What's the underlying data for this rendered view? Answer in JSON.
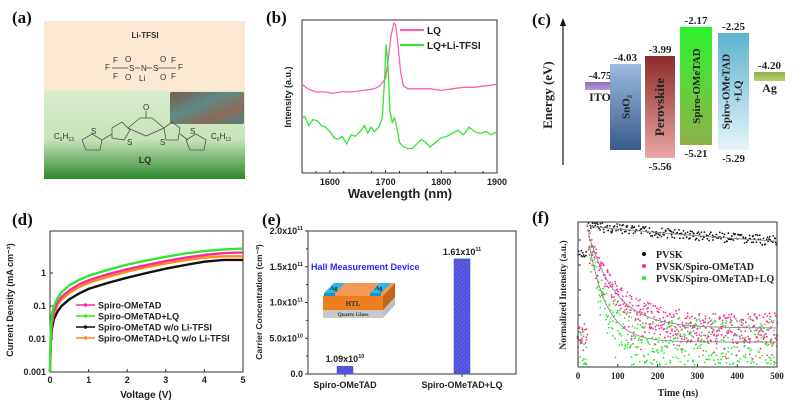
{
  "panels": {
    "a": "(a)",
    "b": "(b)",
    "c": "(c)",
    "d": "(d)",
    "e": "(e)",
    "f": "(f)"
  },
  "panel_a": {
    "top_title": "Li-TFSI",
    "bottom_title": "LQ",
    "li_tfsi_atoms": [
      "F",
      "F",
      "F",
      "O",
      "O",
      "S",
      "N",
      "Li",
      "S",
      "O",
      "O",
      "F",
      "F",
      "F"
    ],
    "lq_atoms": [
      "O",
      "C6H13",
      "S",
      "S",
      "S",
      "S",
      "C6H13"
    ],
    "colors": {
      "top_bg": "#fbe9d4",
      "bottom_top": "#d8ebcc",
      "bottom_bottom": "#2e8a2e"
    }
  },
  "chart_data": [
    {
      "id": "b",
      "type": "line",
      "title": "",
      "xlabel": "Wavelength (nm)",
      "ylabel": "Intensity (a.u.)",
      "xlim": [
        1550,
        1900
      ],
      "ylim": [
        0,
        1
      ],
      "xticks": [
        1600,
        1700,
        1800,
        1900
      ],
      "yticks_shown": false,
      "legend": "top-right",
      "series": [
        {
          "name": "LQ",
          "color": "#ff5fb0",
          "x": [
            1550,
            1560,
            1575,
            1590,
            1605,
            1620,
            1640,
            1660,
            1680,
            1690,
            1700,
            1705,
            1710,
            1715,
            1718,
            1722,
            1727,
            1732,
            1740,
            1760,
            1780,
            1800,
            1820,
            1840,
            1860,
            1880,
            1900
          ],
          "y": [
            0.58,
            0.55,
            0.53,
            0.53,
            0.52,
            0.53,
            0.53,
            0.54,
            0.55,
            0.57,
            0.62,
            0.75,
            0.9,
            0.98,
            0.97,
            0.85,
            0.66,
            0.57,
            0.55,
            0.55,
            0.55,
            0.54,
            0.55,
            0.56,
            0.56,
            0.57,
            0.58
          ]
        },
        {
          "name": "LQ+Li-TFSI",
          "color": "#2ee82e",
          "x": [
            1550,
            1555,
            1562,
            1570,
            1578,
            1585,
            1592,
            1600,
            1608,
            1615,
            1622,
            1630,
            1638,
            1646,
            1654,
            1662,
            1668,
            1674,
            1680,
            1688,
            1694,
            1698,
            1701,
            1704,
            1708,
            1712,
            1716,
            1720,
            1725,
            1732,
            1740,
            1748,
            1756,
            1764,
            1772,
            1780,
            1790,
            1800,
            1810,
            1820,
            1830,
            1840,
            1850,
            1860,
            1870,
            1880,
            1890,
            1900
          ],
          "y": [
            0.36,
            0.37,
            0.31,
            0.35,
            0.34,
            0.31,
            0.3,
            0.27,
            0.23,
            0.22,
            0.24,
            0.19,
            0.25,
            0.24,
            0.27,
            0.31,
            0.26,
            0.3,
            0.27,
            0.3,
            0.36,
            0.6,
            0.84,
            0.72,
            0.4,
            0.33,
            0.36,
            0.3,
            0.2,
            0.17,
            0.16,
            0.16,
            0.19,
            0.22,
            0.2,
            0.17,
            0.2,
            0.23,
            0.24,
            0.26,
            0.28,
            0.25,
            0.3,
            0.27,
            0.26,
            0.27,
            0.25,
            0.27
          ]
        }
      ]
    },
    {
      "id": "c",
      "type": "bar",
      "title": "",
      "ylabel": "Energy (eV)",
      "ylim": [
        -5.8,
        -1.9
      ],
      "categories": [
        "ITO",
        "SnO2",
        "Perovskite",
        "Spiro-OMeTAD",
        "Spiro-OMeTAD+LQ",
        "Ag"
      ],
      "upper": [
        -4.75,
        -4.03,
        -3.99,
        -2.17,
        -2.25,
        -4.2
      ],
      "lower": [
        null,
        -7.4,
        -5.56,
        -5.21,
        -5.29,
        null
      ],
      "upper_labels": [
        "-4.75",
        "-4.03",
        "-3.99",
        "-2.17",
        "-2.25",
        "-4.20"
      ],
      "lower_labels": [
        "",
        "",
        "-5.56",
        "-5.21",
        "-5.29",
        ""
      ],
      "bar_labels": [
        "ITO",
        "SnO₂",
        "Perovskite",
        "Spiro-OMeTAD",
        "Spiro-OMeTAD",
        "Ag"
      ],
      "bar_labels_line2": [
        "",
        "",
        "",
        "",
        "+LQ",
        ""
      ],
      "colors": [
        [
          "#8a6fb8",
          "#b79bd8"
        ],
        [
          "#9fbbe0",
          "#355a8a"
        ],
        [
          "#8e2a2a",
          "#e9a7a7"
        ],
        [
          "#2ef22e",
          "#8fb24a"
        ],
        [
          "#5cb3cf",
          "#e6f4f8"
        ],
        [
          "#8fb24a",
          "#b9cf6e"
        ]
      ]
    },
    {
      "id": "d",
      "type": "line",
      "title": "",
      "xlabel": "Voltage (V)",
      "ylabel": "Current Density (mA cm⁻²)",
      "xlim": [
        0,
        5
      ],
      "ylim": [
        0.001,
        10
      ],
      "yscale": "log",
      "xticks": [
        0,
        1,
        2,
        3,
        4,
        5
      ],
      "yticks": [
        0.001,
        0.01,
        0.1,
        1
      ],
      "ytick_labels": [
        "0.001",
        "0.01",
        "0.1",
        "1"
      ],
      "legend": "center",
      "series": [
        {
          "name": "Spiro-OMeTAD",
          "color": "#ff2a9a",
          "x": [
            0,
            0.02,
            0.05,
            0.1,
            0.2,
            0.3,
            0.5,
            0.75,
            1,
            1.5,
            2,
            2.5,
            3,
            3.5,
            4,
            4.5,
            5
          ],
          "y": [
            0.001,
            0.012,
            0.035,
            0.07,
            0.13,
            0.19,
            0.3,
            0.45,
            0.6,
            0.92,
            1.3,
            1.75,
            2.3,
            2.9,
            3.5,
            4.0,
            4.2
          ]
        },
        {
          "name": "Spiro-OMeTAD+LQ",
          "color": "#2ee82e",
          "x": [
            0,
            0.02,
            0.05,
            0.1,
            0.2,
            0.3,
            0.5,
            0.75,
            1,
            1.5,
            2,
            2.5,
            3,
            3.5,
            4,
            4.5,
            5
          ],
          "y": [
            0.001,
            0.02,
            0.055,
            0.1,
            0.18,
            0.26,
            0.42,
            0.62,
            0.82,
            1.25,
            1.8,
            2.4,
            3.1,
            3.9,
            4.6,
            5.2,
            5.5
          ]
        },
        {
          "name": "Spiro-OMeTAD w/o Li-TFSI",
          "color": "#111111",
          "x": [
            0,
            0.02,
            0.05,
            0.1,
            0.2,
            0.3,
            0.5,
            0.75,
            1,
            1.5,
            2,
            2.5,
            3,
            3.5,
            4,
            4.5,
            5
          ],
          "y": [
            0.001,
            0.008,
            0.02,
            0.04,
            0.07,
            0.1,
            0.16,
            0.24,
            0.33,
            0.5,
            0.72,
            1.0,
            1.35,
            1.75,
            2.2,
            2.5,
            2.5
          ]
        },
        {
          "name": "Spiro-OMeTAD+LQ w/o Li-TFSI",
          "color": "#ff8a1e",
          "x": [
            0,
            0.02,
            0.05,
            0.1,
            0.2,
            0.3,
            0.5,
            0.75,
            1,
            1.5,
            2,
            2.5,
            3,
            3.5,
            4,
            4.5,
            5
          ],
          "y": [
            0.001,
            0.01,
            0.03,
            0.06,
            0.11,
            0.16,
            0.25,
            0.37,
            0.5,
            0.76,
            1.1,
            1.5,
            1.95,
            2.45,
            2.95,
            3.2,
            3.2
          ]
        }
      ]
    },
    {
      "id": "e",
      "type": "bar",
      "title": "",
      "ylabel": "Carrier Concentration (cm⁻³)",
      "ylim": [
        0,
        200000000000.0
      ],
      "yticks": [
        0,
        50000000000.0,
        100000000000.0,
        150000000000.0,
        200000000000.0
      ],
      "ytick_labels": [
        [
          "0.0",
          ""
        ],
        [
          "5.0x10",
          "10"
        ],
        [
          "1.0x10",
          "11"
        ],
        [
          "1.5x10",
          "11"
        ],
        [
          "2.0x10",
          "11"
        ]
      ],
      "categories": [
        "Spiro-OMeTAD",
        "Spiro-OMeTAD+LQ"
      ],
      "values": [
        10900000000.0,
        161000000000.0
      ],
      "data_labels": [
        [
          "1.09x10",
          "10"
        ],
        [
          "1.61x10",
          "11"
        ]
      ],
      "bar_color": "#5a5ae6",
      "inset": {
        "title": "Hall Measurement Device",
        "layers": [
          "Ag",
          "Ag",
          "HTL",
          "Quartz Glass"
        ],
        "title_color": "#2a2aff"
      }
    },
    {
      "id": "f",
      "type": "scatter",
      "title": "",
      "xlabel": "Time (ns)",
      "ylabel": "Normalized Intensity (a.u.)",
      "xlim": [
        0,
        500
      ],
      "xticks": [
        0,
        100,
        200,
        300,
        400,
        500
      ],
      "yscale": "log",
      "yticks_shown": false,
      "legend": "top-right",
      "series": [
        {
          "name": "PVSK",
          "color": "#111111",
          "tau_ns": 1000,
          "fit": true
        },
        {
          "name": "PVSK/Spiro-OMeTAD",
          "color": "#ff2a9a",
          "tau_ns": 70,
          "fit": true
        },
        {
          "name": "PVSK/Spiro-OMeTAD+LQ",
          "color": "#2ee82e",
          "tau_ns": 45,
          "fit": true
        }
      ]
    }
  ]
}
